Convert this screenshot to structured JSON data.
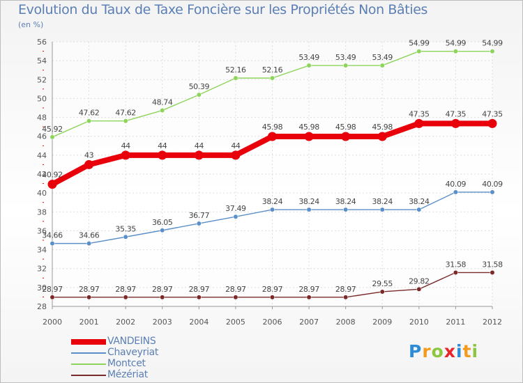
{
  "title": "Evolution du Taux de Taxe Foncière sur les Propriétés Non Bâties",
  "unit": "(en %)",
  "brand": {
    "letters": [
      "P",
      "r",
      "o",
      "x",
      "i",
      "t",
      "i"
    ],
    "colors": [
      "#2e8bd6",
      "#f39b1e",
      "#8cc63f",
      "#e8262a",
      "#2e8bd6",
      "#f39b1e",
      "#8cc63f"
    ]
  },
  "chart_data": {
    "type": "line",
    "title": "Evolution du Taux de Taxe Foncière sur les Propriétés Non Bâties",
    "ylabel": "(en %)",
    "xlabel": "",
    "ylim": [
      28,
      56
    ],
    "yticks": [
      28,
      30,
      32,
      34,
      36,
      38,
      40,
      42,
      44,
      46,
      48,
      50,
      52,
      54,
      56
    ],
    "grid": true,
    "legend": "bottom-left",
    "x": [
      "2000",
      "2001",
      "2002",
      "2003",
      "2004",
      "2005",
      "2006",
      "2007",
      "2008",
      "2009",
      "2010",
      "2011",
      "2012"
    ],
    "series": [
      {
        "name": "VANDEINS",
        "color": "#e8000b",
        "emphasis": true,
        "values": [
          40.92,
          43,
          44,
          44,
          44,
          44,
          45.98,
          45.98,
          45.98,
          45.98,
          47.35,
          47.35,
          47.35
        ],
        "labels": [
          "40.92",
          "43",
          "44",
          "44",
          "44",
          "44",
          "45.98",
          "45.98",
          "45.98",
          "45.98",
          "47.35",
          "47.35",
          "47.35"
        ]
      },
      {
        "name": "Chaveyriat",
        "color": "#5a8fc8",
        "values": [
          34.66,
          34.66,
          35.35,
          36.05,
          36.77,
          37.49,
          38.24,
          38.24,
          38.24,
          38.24,
          38.24,
          40.09,
          40.09
        ],
        "labels": [
          "34.66",
          "34.66",
          "35.35",
          "36.05",
          "36.77",
          "37.49",
          "38.24",
          "38.24",
          "38.24",
          "38.24",
          "38.24",
          "40.09",
          "40.09"
        ]
      },
      {
        "name": "Montcet",
        "color": "#8dd45a",
        "values": [
          45.92,
          47.62,
          47.62,
          48.74,
          50.39,
          52.16,
          52.16,
          53.49,
          53.49,
          53.49,
          54.99,
          54.99,
          54.99
        ],
        "labels": [
          "45.92",
          "47.62",
          "47.62",
          "48.74",
          "50.39",
          "52.16",
          "52.16",
          "53.49",
          "53.49",
          "53.49",
          "54.99",
          "54.99",
          "54.99"
        ]
      },
      {
        "name": "Mézériat",
        "color": "#7a2a2a",
        "values": [
          28.97,
          28.97,
          28.97,
          28.97,
          28.97,
          28.97,
          28.97,
          28.97,
          28.97,
          29.55,
          29.82,
          31.58,
          31.58
        ],
        "labels": [
          "28.97",
          "28.97",
          "28.97",
          "28.97",
          "28.97",
          "28.97",
          "28.97",
          "28.97",
          "28.97",
          "29.55",
          "29.82",
          "31.58",
          "31.58"
        ]
      }
    ]
  }
}
